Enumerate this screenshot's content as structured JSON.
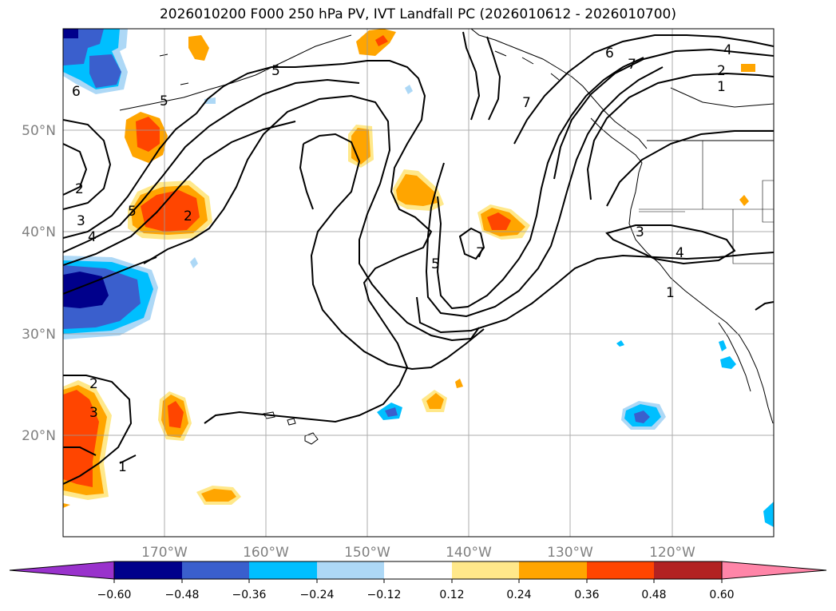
{
  "title": "2026010200 F000 250 hPa PV, IVT Landfall PC (2026010612 - 2026010700)",
  "map": {
    "projection": "lat-lon",
    "lon_range": [
      -180,
      -110
    ],
    "lat_range": [
      10,
      60
    ],
    "grid": true,
    "lon_labels": [
      "170°W",
      "160°W",
      "150°W",
      "140°W",
      "130°W",
      "120°W"
    ],
    "lat_labels": [
      "50°N",
      "40°N",
      "30°N",
      "20°N"
    ],
    "contour_labels": [
      "6",
      "5",
      "5",
      "2",
      "3",
      "4",
      "5",
      "2",
      "2",
      "3",
      "1",
      "5",
      "7",
      "7",
      "6",
      "4",
      "2",
      "1",
      "3",
      "4",
      "1",
      "7"
    ],
    "colors": {
      "neg_060_below": "#9932cc",
      "neg_048": "#00008b",
      "neg_036": "#3a5fcd",
      "neg_024": "#00bfff",
      "neg_012": "#add8f6",
      "zero": "#ffffff",
      "pos_012": "#ffe88a",
      "pos_024": "#ffa500",
      "pos_036": "#ff4500",
      "pos_048": "#b22222",
      "pos_060_above": "#ff85a8"
    }
  },
  "colorbar": {
    "ticks": [
      "−0.60",
      "−0.48",
      "−0.36",
      "−0.24",
      "−0.12",
      "0.12",
      "0.24",
      "0.36",
      "0.48",
      "0.60"
    ],
    "extend": "both",
    "bins": [
      "#9932cc",
      "#00008b",
      "#3a5fcd",
      "#00bfff",
      "#add8f6",
      "#ffffff",
      "#ffe88a",
      "#ffa500",
      "#ff4500",
      "#b22222",
      "#ff85a8"
    ]
  }
}
